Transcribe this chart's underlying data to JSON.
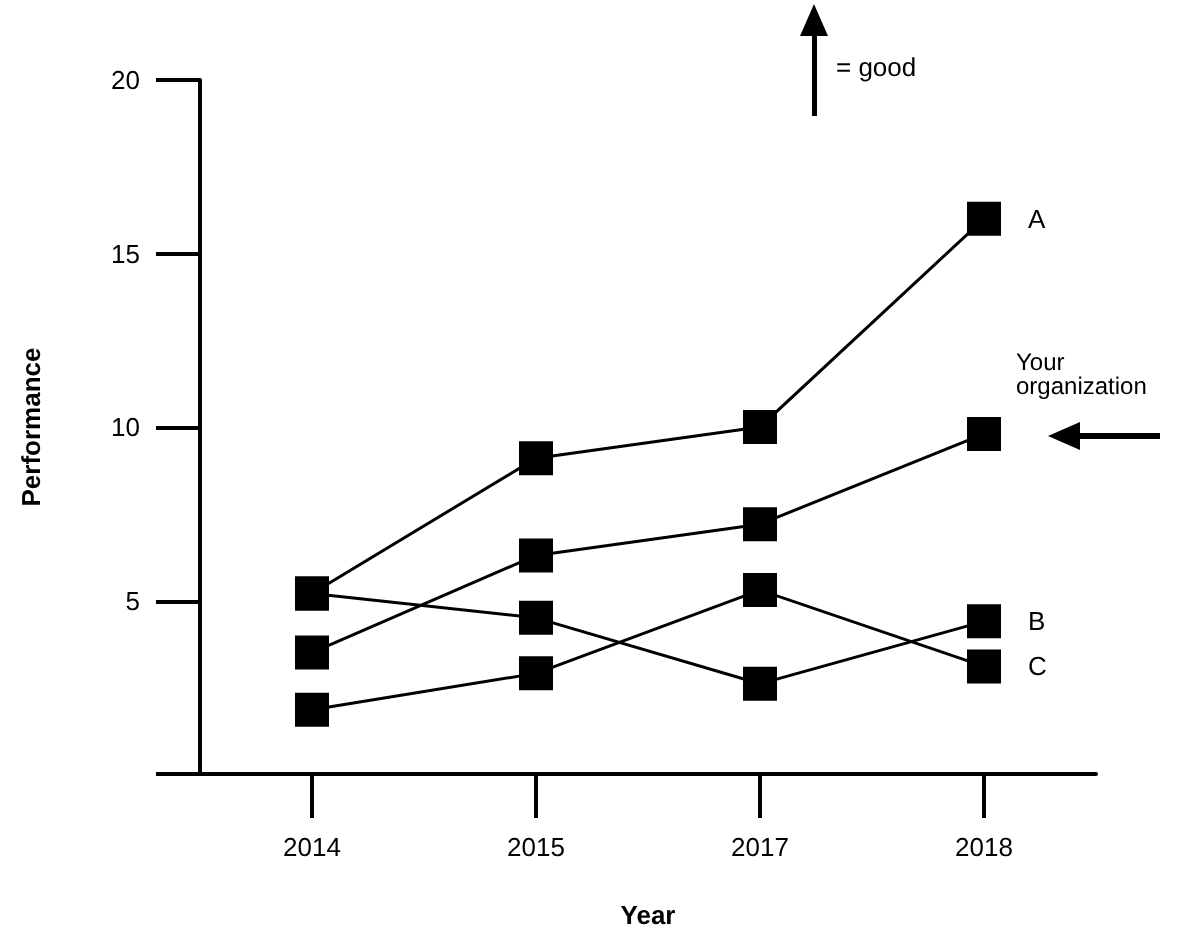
{
  "chart_data": {
    "type": "line",
    "xlabel": "Year",
    "ylabel": "Performance",
    "categories": [
      "2014",
      "2015",
      "2017",
      "2018"
    ],
    "series": [
      {
        "name": "A",
        "color": "#000000",
        "values": [
          5.2,
          9.1,
          10.0,
          16.0
        ]
      },
      {
        "name": "Your organization",
        "color": "#000000",
        "values": [
          3.5,
          6.3,
          7.2,
          9.8
        ]
      },
      {
        "name": "B",
        "color": "#000000",
        "values": [
          5.2,
          4.5,
          2.6,
          4.4
        ]
      },
      {
        "name": "C",
        "color": "#000000",
        "values": [
          1.85,
          2.9,
          5.3,
          3.1
        ]
      }
    ],
    "ylim": [
      0,
      20
    ],
    "yticks": [
      {
        "value": 0,
        "label": null
      },
      5,
      10,
      15,
      20
    ],
    "annotations": [
      "= good"
    ],
    "marker": "square",
    "line_style": "solid",
    "grid": false,
    "legend": false
  }
}
